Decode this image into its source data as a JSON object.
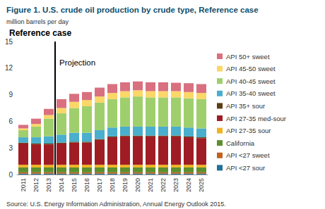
{
  "chart_data": {
    "type": "bar",
    "stacked": true,
    "title": "Figure 1. U.S. crude oil production by crude type, Reference case",
    "subtitle": "million barrels per day",
    "source": "Source: U.S. Energy Information Administration, Annual Energy Outlook 2015.",
    "annotations": [
      {
        "text": "Reference case"
      },
      {
        "text": "Projection",
        "x": "2014"
      }
    ],
    "categories": [
      "2011",
      "2012",
      "2013",
      "2014",
      "2015",
      "2016",
      "2017",
      "2018",
      "2019",
      "2020",
      "2021",
      "2022",
      "2023",
      "2024",
      "2025"
    ],
    "series": [
      {
        "name": "API <27 sour",
        "color": "#1f7196",
        "values": [
          0.1,
          0.1,
          0.1,
          0.1,
          0.1,
          0.1,
          0.1,
          0.1,
          0.1,
          0.1,
          0.1,
          0.1,
          0.1,
          0.1,
          0.1
        ]
      },
      {
        "name": "API <27 sweet",
        "color": "#c0611d",
        "values": [
          0.15,
          0.15,
          0.15,
          0.15,
          0.15,
          0.15,
          0.15,
          0.15,
          0.15,
          0.15,
          0.15,
          0.15,
          0.15,
          0.15,
          0.15
        ]
      },
      {
        "name": "California",
        "color": "#5c8f2e",
        "values": [
          0.55,
          0.55,
          0.55,
          0.55,
          0.55,
          0.55,
          0.55,
          0.55,
          0.55,
          0.55,
          0.55,
          0.55,
          0.55,
          0.55,
          0.55
        ]
      },
      {
        "name": "API 27-35 sour",
        "color": "#f0b320",
        "values": [
          0.3,
          0.3,
          0.3,
          0.3,
          0.3,
          0.3,
          0.3,
          0.3,
          0.3,
          0.3,
          0.3,
          0.3,
          0.3,
          0.3,
          0.3
        ]
      },
      {
        "name": "API 27-35 med-sour",
        "color": "#a01c24",
        "values": [
          2.4,
          2.3,
          2.3,
          2.4,
          2.5,
          2.5,
          2.8,
          3.1,
          3.2,
          3.2,
          3.2,
          3.2,
          3.2,
          3.1,
          3.0
        ]
      },
      {
        "name": "API 35+ sour",
        "color": "#5c3c12",
        "values": [
          0.1,
          0.1,
          0.1,
          0.1,
          0.1,
          0.1,
          0.1,
          0.1,
          0.1,
          0.1,
          0.1,
          0.1,
          0.1,
          0.1,
          0.1
        ]
      },
      {
        "name": "API 35-40 sweet",
        "color": "#4aaecd",
        "values": [
          0.6,
          0.7,
          0.8,
          0.9,
          1.0,
          1.0,
          1.0,
          1.0,
          1.0,
          1.0,
          1.0,
          1.0,
          1.0,
          1.0,
          1.0
        ]
      },
      {
        "name": "API 40-45 sweet",
        "color": "#9fcf6d",
        "values": [
          0.8,
          1.2,
          2.0,
          2.4,
          2.8,
          3.0,
          3.1,
          3.2,
          3.3,
          3.4,
          3.3,
          3.3,
          3.3,
          3.3,
          3.3
        ]
      },
      {
        "name": "API 45-50 sweet",
        "color": "#fbd767",
        "values": [
          0.2,
          0.3,
          0.4,
          0.6,
          0.7,
          0.7,
          0.7,
          0.7,
          0.7,
          0.7,
          0.7,
          0.7,
          0.7,
          0.7,
          0.7
        ]
      },
      {
        "name": "API 50+ sweet",
        "color": "#d9707f",
        "values": [
          0.4,
          0.6,
          0.7,
          1.0,
          0.9,
          0.9,
          1.0,
          1.0,
          1.0,
          1.0,
          1.0,
          1.0,
          0.95,
          1.0,
          1.0
        ]
      }
    ],
    "ylim": [
      0,
      15
    ],
    "yticks": [
      0,
      3,
      6,
      9,
      12,
      15
    ],
    "grid": false,
    "legend": "right"
  }
}
